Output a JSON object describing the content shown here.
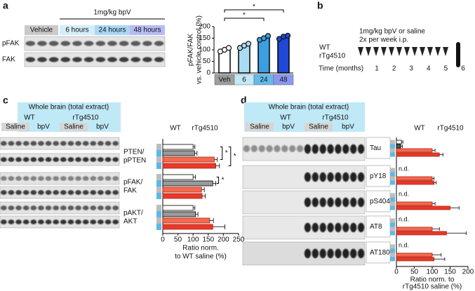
{
  "panel_labels": [
    "a",
    "b",
    "c",
    "d"
  ],
  "blot_a": {
    "group_label": "1mg/kg bpV",
    "lanes": [
      "Vehicle",
      "6 hours",
      "24 hours",
      "48 hours"
    ],
    "lane_colors": [
      "#c9c9c9",
      "#d3eef9",
      "#a9d8f2",
      "#b7bbf4"
    ],
    "rows": [
      "pFAK",
      "FAK"
    ]
  },
  "timeline_b": {
    "treatment": "1mg/kg bpV or saline",
    "schedule": "2x per week i.p.",
    "groups": [
      "WT",
      "rTg4510"
    ],
    "group_colors": [
      "#000000",
      "#e8392a"
    ],
    "axis_label": "Time (months)",
    "months": [
      "1",
      "2",
      "3",
      "4",
      "5",
      "6"
    ]
  },
  "blot_c": {
    "title": "Whole brain (total extract)",
    "genotypes": [
      "WT",
      "rTg4510"
    ],
    "treatments": [
      "Saline",
      "bpV",
      "Saline",
      "bpV"
    ]
  },
  "blot_d": {
    "title": "Whole brain (total extract)",
    "genotypes": [
      "WT",
      "rTg4510"
    ],
    "treatments": [
      "Saline",
      "bpV",
      "Saline",
      "bpV"
    ]
  },
  "chart_data": [
    {
      "type": "bar",
      "categories": [
        "Veh",
        "6",
        "24",
        "48"
      ],
      "values": [
        100,
        117,
        151,
        155
      ],
      "points": [
        [
          93,
          100,
          108
        ],
        [
          108,
          118,
          126
        ],
        [
          143,
          150,
          160
        ],
        [
          147,
          157,
          161
        ]
      ],
      "colors": [
        "#ffffff",
        "#a9dcf2",
        "#3b9fe0",
        "#1f49d6"
      ],
      "label_colors": [
        "#9d9d9d",
        "#c3e8f7",
        "#64b9ea",
        "#8b97f0"
      ],
      "y_label": [
        "pFAK/FAK",
        "vs. vehicle control (%)"
      ],
      "ylim": [
        0,
        200
      ],
      "yticks": [
        0,
        50,
        100,
        150,
        200
      ],
      "significance": [
        {
          "from": 0,
          "to": 2,
          "label": "*"
        },
        {
          "from": 0,
          "to": 3,
          "label": "*"
        }
      ]
    },
    {
      "type": "hbar",
      "categories": [
        [
          "PTEN/",
          "pPTEN"
        ],
        [
          "pFAK/",
          "FAK"
        ],
        [
          "pAKT/",
          "AKT"
        ]
      ],
      "legend": [
        {
          "label": "WT",
          "color": "#000000"
        },
        {
          "label": "rTg4510",
          "color": "#e8392a"
        }
      ],
      "side_colors": [
        "#bdbdbd",
        "#5cb9e6"
      ],
      "series": [
        {
          "color": "#ffffff",
          "edge": "#000000",
          "values": [
            100,
            100,
            100
          ],
          "errors": [
            6,
            8,
            6
          ]
        },
        {
          "color": "#9a9a9a",
          "edge": "#000000",
          "values": [
            105,
            165,
            108
          ],
          "errors": [
            8,
            10,
            8
          ]
        },
        {
          "color": "#f26b50",
          "edge": "#b02010",
          "values": [
            170,
            128,
            155
          ],
          "errors": [
            10,
            9,
            12
          ]
        },
        {
          "color": "#e8392a",
          "edge": "#b02010",
          "values": [
            175,
            130,
            165
          ],
          "errors": [
            12,
            10,
            40
          ]
        }
      ],
      "x_label": [
        "Ratio norm.",
        "to WT saline (%)"
      ],
      "xlim": [
        0,
        250
      ],
      "xticks": [
        0,
        50,
        100,
        150,
        200,
        250
      ],
      "significance": [
        {
          "group": 0,
          "from": 0,
          "to": 2,
          "label": "*"
        },
        {
          "group": 0,
          "from": 0,
          "to": 3,
          "label": "*"
        },
        {
          "group": 1,
          "from": 0,
          "to": 1,
          "label": "*"
        }
      ]
    },
    {
      "type": "hbar",
      "categories": [
        "Tau",
        "pY18",
        "pS404",
        "AT8",
        "AT180"
      ],
      "legend": [
        {
          "label": "WT",
          "color": "#000000"
        },
        {
          "label": "rTg4510",
          "color": "#e8392a"
        }
      ],
      "side_colors": [
        "#bdbdbd",
        "#5cb9e6"
      ],
      "series": [
        {
          "color": "#ffffff",
          "edge": "#000000",
          "values": [
            14,
            null,
            null,
            null,
            null
          ],
          "errors": [
            4,
            null,
            null,
            null,
            null
          ],
          "value_labels": [
            null,
            "n.d.",
            "n.d.",
            "n.d.",
            "n.d."
          ]
        },
        {
          "color": "#555555",
          "edge": "#000000",
          "values": [
            12,
            null,
            null,
            null,
            null
          ],
          "errors": [
            5,
            null,
            null,
            null,
            null
          ]
        },
        {
          "color": "#f26b50",
          "edge": "#b02010",
          "values": [
            100,
            100,
            100,
            100,
            100
          ],
          "errors": [
            8,
            5,
            8,
            20,
            25
          ]
        },
        {
          "color": "#e8392a",
          "edge": "#b02010",
          "values": [
            120,
            105,
            150,
            140,
            105
          ],
          "errors": [
            10,
            6,
            25,
            55,
            30
          ]
        }
      ],
      "x_label": [
        "Ratio norm. to",
        "rTg4510 saline (%)"
      ],
      "xlim": [
        0,
        200
      ],
      "xticks": [
        0,
        50,
        100,
        150,
        200
      ]
    }
  ]
}
